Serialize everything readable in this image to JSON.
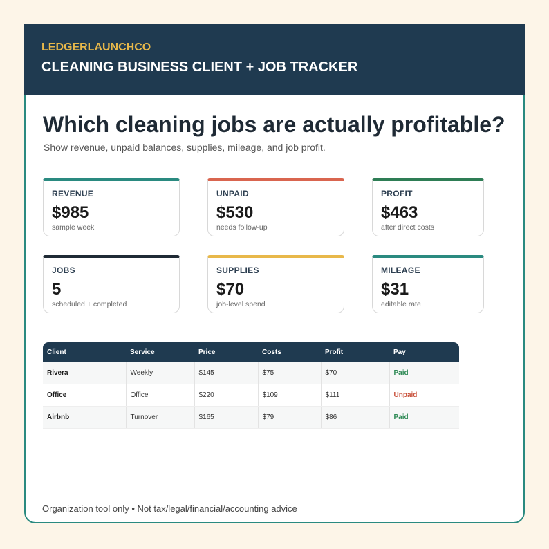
{
  "header": {
    "brand": "LEDGERLAUNCHCO",
    "title": "CLEANING BUSINESS CLIENT + JOB TRACKER"
  },
  "main": {
    "headline": "Which cleaning jobs are actually profitable?",
    "subtitle": "Show revenue, unpaid balances, supplies, mileage, and job profit."
  },
  "cards": [
    {
      "label": "REVENUE",
      "value": "$985",
      "note": "sample week"
    },
    {
      "label": "UNPAID",
      "value": "$530",
      "note": "needs follow-up"
    },
    {
      "label": "PROFIT",
      "value": "$463",
      "note": "after direct costs"
    },
    {
      "label": "JOBS",
      "value": "5",
      "note": "scheduled + completed"
    },
    {
      "label": "SUPPLIES",
      "value": "$70",
      "note": "job-level spend"
    },
    {
      "label": "MILEAGE",
      "value": "$31",
      "note": "editable rate"
    }
  ],
  "table": {
    "columns": [
      "Client",
      "Service",
      "Price",
      "Costs",
      "Profit",
      "Pay"
    ],
    "rows": [
      [
        "Rivera",
        "Weekly",
        "$145",
        "$75",
        "$70",
        "Paid"
      ],
      [
        "Office",
        "Office",
        "$220",
        "$109",
        "$111",
        "Unpaid"
      ],
      [
        "Airbnb",
        "Turnover",
        "$165",
        "$79",
        "$86",
        "Paid"
      ]
    ]
  },
  "footer": "Organization tool only • Not tax/legal/financial/accounting advice"
}
